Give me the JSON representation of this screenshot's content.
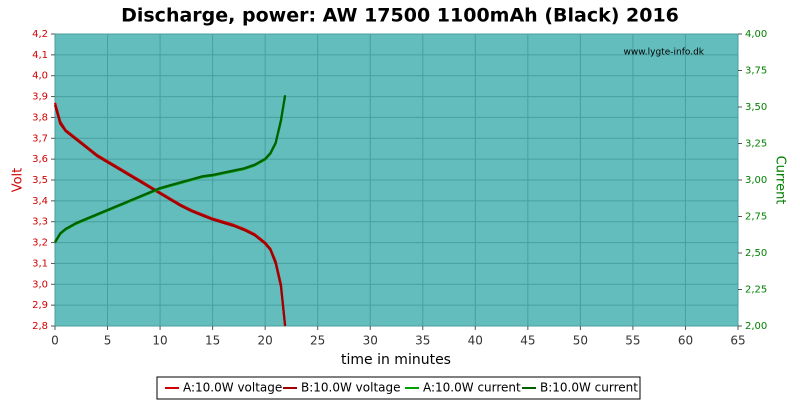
{
  "chart_data": {
    "type": "line",
    "title": "Discharge, power: AW 17500 1100mAh (Black) 2016",
    "watermark": "www.lygte-info.dk",
    "x_label": "time in minutes",
    "y_label": "Volt",
    "y2_label": "Current",
    "x": [
      0,
      0.5,
      1,
      2,
      3,
      4,
      5,
      6,
      7,
      8,
      9,
      10,
      11,
      12,
      13,
      14,
      15,
      16,
      17,
      18,
      19,
      20,
      20.5,
      21,
      21.5,
      21.9
    ],
    "xlim": [
      0,
      65
    ],
    "xticks": [
      0,
      5,
      10,
      15,
      20,
      25,
      30,
      35,
      40,
      45,
      50,
      55,
      60,
      65
    ],
    "ylim": [
      2.8,
      4.2
    ],
    "yticks": [
      {
        "value": 2.8,
        "label": "2,8"
      },
      {
        "value": 2.9,
        "label": "2,9"
      },
      {
        "value": 3.0,
        "label": "3,0"
      },
      {
        "value": 3.1,
        "label": "3,1"
      },
      {
        "value": 3.2,
        "label": "3,2"
      },
      {
        "value": 3.3,
        "label": "3,3"
      },
      {
        "value": 3.4,
        "label": "3,4"
      },
      {
        "value": 3.5,
        "label": "3,5"
      },
      {
        "value": 3.6,
        "label": "3,6"
      },
      {
        "value": 3.7,
        "label": "3,7"
      },
      {
        "value": 3.8,
        "label": "3,8"
      },
      {
        "value": 3.9,
        "label": "3,9"
      },
      {
        "value": 4.0,
        "label": "4,0"
      },
      {
        "value": 4.1,
        "label": "4,1"
      },
      {
        "value": 4.2,
        "label": "4,2"
      }
    ],
    "y2lim": [
      2,
      4
    ],
    "y2ticks": [
      {
        "value": 2,
        "label": "2,00"
      },
      {
        "value": 2.25,
        "label": "2,25"
      },
      {
        "value": 2.5,
        "label": "2,50"
      },
      {
        "value": 2.75,
        "label": "2,75"
      },
      {
        "value": 3,
        "label": "3,00"
      },
      {
        "value": 3.25,
        "label": "3,25"
      },
      {
        "value": 3.5,
        "label": "3,50"
      },
      {
        "value": 3.75,
        "label": "3,75"
      },
      {
        "value": 4,
        "label": "4,00"
      }
    ],
    "grid": true,
    "legend": "bottom",
    "series": [
      {
        "name": "A:10.0W voltage",
        "color": "#d00000",
        "values": [
          3.87,
          3.78,
          3.74,
          3.7,
          3.66,
          3.62,
          3.59,
          3.56,
          3.53,
          3.5,
          3.47,
          3.44,
          3.41,
          3.38,
          3.355,
          3.335,
          3.315,
          3.3,
          3.285,
          3.265,
          3.24,
          3.2,
          3.17,
          3.11,
          3.0,
          2.8
        ]
      },
      {
        "name": "B:10.0W voltage",
        "color": "#a00000",
        "values": [
          3.86,
          3.77,
          3.735,
          3.695,
          3.655,
          3.615,
          3.585,
          3.555,
          3.525,
          3.495,
          3.465,
          3.435,
          3.405,
          3.375,
          3.35,
          3.33,
          3.31,
          3.295,
          3.28,
          3.26,
          3.235,
          3.195,
          3.165,
          3.1,
          2.99,
          2.8
        ]
      },
      {
        "name": "A:10.0W current",
        "color": "#00a000",
        "values": [
          2.57,
          2.63,
          2.66,
          2.7,
          2.73,
          2.76,
          2.79,
          2.82,
          2.85,
          2.88,
          2.91,
          2.94,
          2.96,
          2.98,
          3.0,
          3.02,
          3.03,
          3.045,
          3.06,
          3.075,
          3.1,
          3.14,
          3.18,
          3.25,
          3.4,
          3.58
        ],
        "axis": "y2"
      },
      {
        "name": "B:10.0W current",
        "color": "#006000",
        "values": [
          2.575,
          2.635,
          2.665,
          2.705,
          2.735,
          2.765,
          2.795,
          2.825,
          2.855,
          2.885,
          2.915,
          2.945,
          2.965,
          2.985,
          3.005,
          3.025,
          3.035,
          3.05,
          3.065,
          3.08,
          3.105,
          3.145,
          3.185,
          3.255,
          3.41,
          3.58
        ],
        "axis": "y2"
      }
    ]
  }
}
